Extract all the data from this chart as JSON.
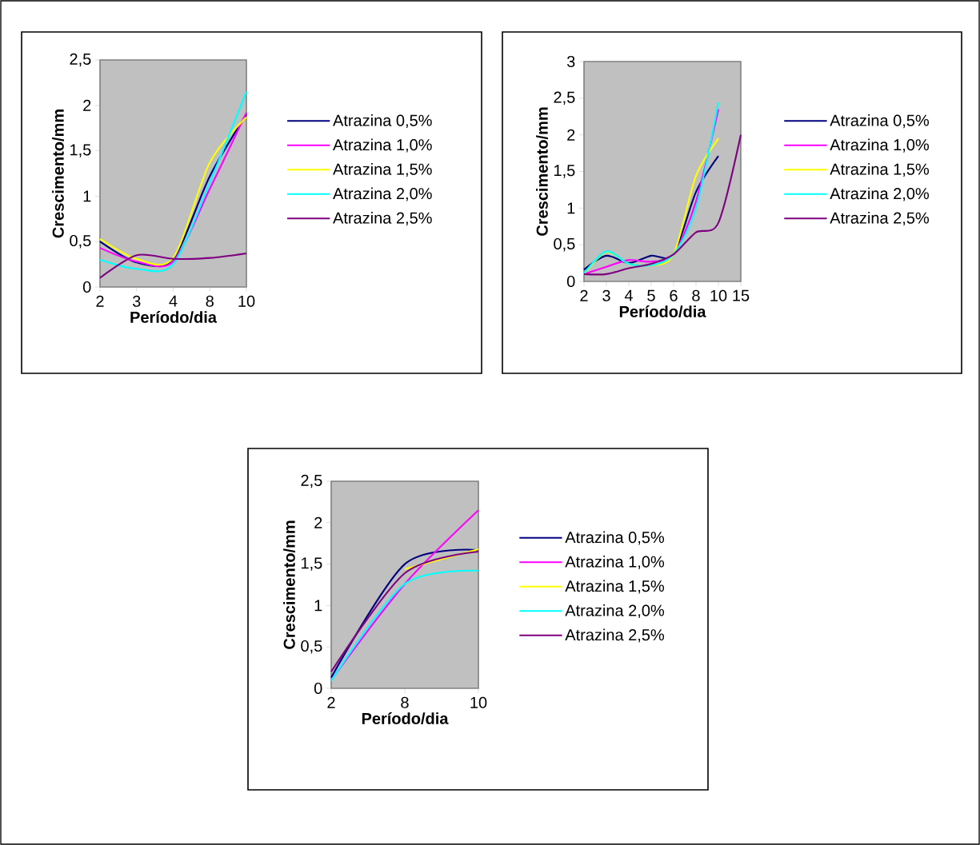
{
  "chart_data": [
    {
      "type": "line",
      "xlabel": "Período/dia",
      "ylabel": "Crescimento/mm",
      "categories": [
        "2",
        "3",
        "4",
        "8",
        "10"
      ],
      "ylim": [
        0,
        2.5
      ],
      "yticks": [
        0,
        {
          "value": 0.5,
          "label": "0,5"
        },
        1,
        {
          "value": 1.5,
          "label": "1,5"
        },
        2,
        {
          "value": 2.5,
          "label": "2,5"
        }
      ],
      "legend": "right",
      "marker": "none",
      "series": [
        {
          "name": "Atrazina 0,5%",
          "color": "#000080",
          "values": [
            0.5,
            0.27,
            0.31,
            1.22,
            1.9
          ]
        },
        {
          "name": "Atrazina 1,0%",
          "color": "#ff00ff",
          "values": [
            0.43,
            0.28,
            0.28,
            1.08,
            1.92
          ]
        },
        {
          "name": "Atrazina 1,5%",
          "color": "#ffff00",
          "values": [
            0.53,
            0.31,
            0.32,
            1.37,
            1.87
          ]
        },
        {
          "name": "Atrazina 2,0%",
          "color": "#00ffff",
          "values": [
            0.3,
            0.2,
            0.25,
            1.15,
            2.15
          ]
        },
        {
          "name": "Atrazina 2,5%",
          "color": "#800080",
          "values": [
            0.1,
            0.35,
            0.31,
            0.32,
            0.37
          ]
        }
      ]
    },
    {
      "type": "line",
      "xlabel": "Período/dia",
      "ylabel": "Crescimento/mm",
      "categories": [
        "2",
        "3",
        "4",
        "5",
        "6",
        "8",
        "10",
        "15"
      ],
      "ylim": [
        0,
        3
      ],
      "yticks": [
        0,
        {
          "value": 0.5,
          "label": "0,5"
        },
        1,
        {
          "value": 1.5,
          "label": "1,5"
        },
        2,
        {
          "value": 2.5,
          "label": "2,5"
        },
        3
      ],
      "legend": "right",
      "marker": "none",
      "series": [
        {
          "name": "Atrazina 0,5%",
          "color": "#000080",
          "values": [
            0.16,
            0.35,
            0.25,
            0.35,
            0.37,
            1.22,
            1.71,
            null
          ]
        },
        {
          "name": "Atrazina 1,0%",
          "color": "#ff00ff",
          "values": [
            0.1,
            0.2,
            0.29,
            0.27,
            0.37,
            1.09,
            2.35,
            null
          ]
        },
        {
          "name": "Atrazina 1,5%",
          "color": "#ffff00",
          "values": [
            0.1,
            0.4,
            0.24,
            0.22,
            0.37,
            1.44,
            1.95,
            null
          ]
        },
        {
          "name": "Atrazina 2,0%",
          "color": "#00ffff",
          "values": [
            0.11,
            0.41,
            0.24,
            0.22,
            0.37,
            1.0,
            2.44,
            null
          ]
        },
        {
          "name": "Atrazina 2,5%",
          "color": "#800080",
          "values": [
            0.1,
            0.1,
            0.18,
            0.24,
            0.37,
            0.67,
            0.8,
            2.0
          ]
        }
      ]
    },
    {
      "type": "line",
      "xlabel": "Período/dia",
      "ylabel": "Crescimento/mm",
      "categories": [
        "2",
        "8",
        "10"
      ],
      "ylim": [
        0,
        2.5
      ],
      "yticks": [
        0,
        {
          "value": 0.5,
          "label": "0,5"
        },
        1,
        {
          "value": 1.5,
          "label": "1,5"
        },
        2,
        {
          "value": 2.5,
          "label": "2,5"
        }
      ],
      "legend": "right",
      "marker": "none",
      "series": [
        {
          "name": "Atrazina 0,5%",
          "color": "#000080",
          "values": [
            0.13,
            1.5,
            1.67
          ]
        },
        {
          "name": "Atrazina 1,0%",
          "color": "#ff00ff",
          "values": [
            0.1,
            1.26,
            2.15
          ]
        },
        {
          "name": "Atrazina 1,5%",
          "color": "#ffff00",
          "values": [
            null,
            1.44,
            1.68
          ]
        },
        {
          "name": "Atrazina 2,0%",
          "color": "#00ffff",
          "values": [
            0.09,
            1.26,
            1.42
          ]
        },
        {
          "name": "Atrazina 2,5%",
          "color": "#800080",
          "values": [
            0.2,
            1.39,
            1.65
          ]
        }
      ]
    }
  ]
}
